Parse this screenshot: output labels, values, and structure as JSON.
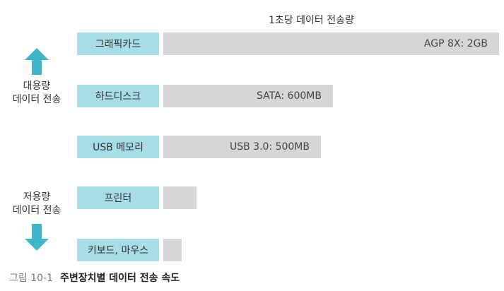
{
  "header": {
    "title": "1초당 데이터 전송량"
  },
  "side": {
    "top_line1": "대용량",
    "top_line2": "데이터 전송",
    "bottom_line1": "저용량",
    "bottom_line2": "데이터 전송"
  },
  "colors": {
    "arrow": "#3fb6c9",
    "label_bg": "#a6dde6",
    "bar": "#d6d6d6"
  },
  "rows": [
    {
      "label": "그래픽카드",
      "bar_text": "AGP 8X: 2GB"
    },
    {
      "label": "하드디스크",
      "bar_text": "SATA: 600MB"
    },
    {
      "label": "USB 메모리",
      "bar_text": "USB 3.0: 500MB"
    },
    {
      "label": "프린터",
      "bar_text": ""
    },
    {
      "label": "키보드, 마우스",
      "bar_text": ""
    }
  ],
  "caption": {
    "number": "그림 10-1",
    "title": "주변장치별 데이터 전송 속도"
  }
}
